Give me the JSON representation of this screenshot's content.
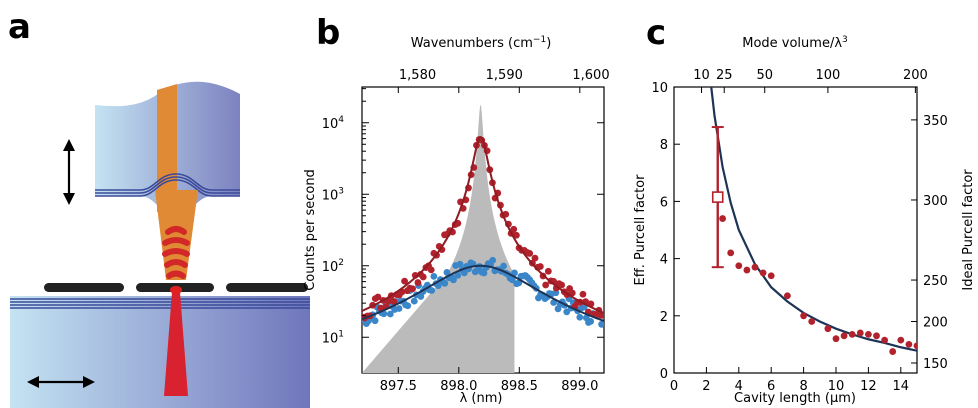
{
  "panels": {
    "a": "a",
    "b": "b",
    "c": "c"
  },
  "colors": {
    "red": "#b2222d",
    "blue": "#3b86c8",
    "navy": "#1d3457",
    "gray": "#bbbbbb",
    "fiber_light": "#bfe0f0",
    "fiber_dark": "#7a86c2",
    "core": "#e08a35",
    "mode": "#e03030",
    "mirror": "#3a4a9a",
    "metal": "#222222"
  },
  "chart_data": [
    {
      "type": "scatter",
      "panel": "b",
      "xlabel": "λ (nm)",
      "xlabel_top": "Wavenumbers (cm",
      "xlabel_top_sup": "−1",
      "xlabel_top_end": ")",
      "ylabel": "Counts per second",
      "xlim": [
        897.2,
        899.2
      ],
      "ylim_log10": [
        0.5,
        4.5
      ],
      "x_ticks": [
        {
          "v": 897.5,
          "t": "897.5"
        },
        {
          "v": 898.0,
          "t": "898.0"
        },
        {
          "v": 898.5,
          "t": "898.5"
        },
        {
          "v": 899.0,
          "t": "899.0"
        }
      ],
      "x_top_ticks": [
        {
          "v": 1580,
          "t": "1,580"
        },
        {
          "v": 1590,
          "t": "1,590"
        },
        {
          "v": 1600,
          "t": "1,600"
        }
      ],
      "y_ticks": [
        {
          "exp": 1,
          "t": "10"
        },
        {
          "exp": 2,
          "t": "10"
        },
        {
          "exp": 3,
          "t": "10"
        },
        {
          "exp": 4,
          "t": "10"
        }
      ],
      "series": [
        {
          "style": "gray-fill",
          "center": 898.18,
          "width": 0.018,
          "peak_log10": 4.25,
          "base_log10": 0.3
        },
        {
          "style": "red-dots",
          "center": 898.18,
          "width": 0.055,
          "peak_log10": 3.8,
          "base_log10": 0.55
        },
        {
          "style": "blue-dots",
          "center": 898.18,
          "width": 0.42,
          "peak_log10": 2.0,
          "base_log10": 0.45
        }
      ]
    },
    {
      "type": "scatter",
      "panel": "c",
      "xlabel": "Cavity length (μm)",
      "ylabel": "Eff. Purcell factor",
      "ylabel_right": "Ideal Purcell factor",
      "xlabel_top": "Mode volume/λ",
      "xlabel_top_sup": "3",
      "xlim": [
        0,
        15
      ],
      "ylim": [
        0,
        10
      ],
      "x_ticks": [
        0,
        2,
        4,
        6,
        8,
        10,
        12,
        14
      ],
      "y_ticks": [
        0,
        2,
        4,
        6,
        8,
        10
      ],
      "x_top_ticks": [
        {
          "x": 1.7,
          "t": "10"
        },
        {
          "x": 3.1,
          "t": "25"
        },
        {
          "x": 5.6,
          "t": "50"
        },
        {
          "x": 9.5,
          "t": "100"
        },
        {
          "x": 14.9,
          "t": "200"
        }
      ],
      "y_right_ticks": [
        {
          "y": 0.35,
          "t": "150"
        },
        {
          "y": 1.8,
          "t": "200"
        },
        {
          "y": 3.25,
          "t": "250"
        },
        {
          "y": 6.05,
          "t": "300"
        },
        {
          "y": 8.85,
          "t": "350"
        }
      ],
      "points": [
        [
          3.0,
          5.4
        ],
        [
          3.5,
          4.2
        ],
        [
          4.0,
          3.75
        ],
        [
          4.5,
          3.6
        ],
        [
          5.0,
          3.7
        ],
        [
          5.5,
          3.5
        ],
        [
          6.0,
          3.4
        ],
        [
          7.0,
          2.7
        ],
        [
          8.0,
          2.0
        ],
        [
          8.5,
          1.8
        ],
        [
          9.5,
          1.55
        ],
        [
          10.0,
          1.2
        ],
        [
          10.5,
          1.3
        ],
        [
          11.0,
          1.35
        ],
        [
          11.5,
          1.4
        ],
        [
          12.0,
          1.35
        ],
        [
          12.5,
          1.3
        ],
        [
          13.0,
          1.15
        ],
        [
          13.5,
          0.75
        ],
        [
          14.0,
          1.15
        ],
        [
          14.5,
          1.0
        ],
        [
          15.0,
          0.95
        ]
      ],
      "curve_points": [
        [
          2.3,
          10.0
        ],
        [
          2.5,
          9.0
        ],
        [
          3.0,
          7.2
        ],
        [
          3.5,
          5.95
        ],
        [
          4.0,
          5.0
        ],
        [
          5.0,
          3.8
        ],
        [
          6.0,
          3.0
        ],
        [
          7.0,
          2.5
        ],
        [
          8.0,
          2.1
        ],
        [
          9.0,
          1.8
        ],
        [
          10.0,
          1.55
        ],
        [
          11.0,
          1.35
        ],
        [
          12.0,
          1.18
        ],
        [
          13.0,
          1.05
        ],
        [
          14.0,
          0.9
        ],
        [
          15.0,
          0.78
        ]
      ],
      "marker": {
        "x": 2.7,
        "y": 6.15,
        "err_low": 3.7,
        "err_high": 8.6
      }
    }
  ]
}
